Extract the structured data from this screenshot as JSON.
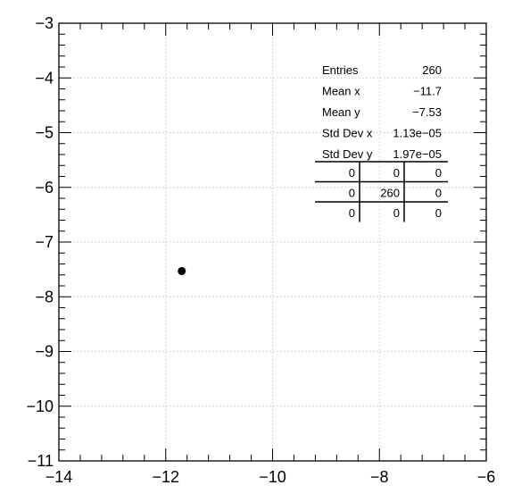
{
  "chart_data": {
    "type": "scatter",
    "title": "",
    "xlabel": "",
    "ylabel": "",
    "xlim": [
      -14,
      -6
    ],
    "ylim": [
      -11,
      -3
    ],
    "x_ticks": [
      {
        "value": -14,
        "label": "−14"
      },
      {
        "value": -12,
        "label": "−12"
      },
      {
        "value": -10,
        "label": "−10"
      },
      {
        "value": -8,
        "label": "−8"
      },
      {
        "value": -6,
        "label": "−6"
      }
    ],
    "y_ticks": [
      {
        "value": -3,
        "label": "−3"
      },
      {
        "value": -4,
        "label": "−4"
      },
      {
        "value": -5,
        "label": "−5"
      },
      {
        "value": -6,
        "label": "−6"
      },
      {
        "value": -7,
        "label": "−7"
      },
      {
        "value": -8,
        "label": "−8"
      },
      {
        "value": -9,
        "label": "−9"
      },
      {
        "value": -10,
        "label": "−10"
      },
      {
        "value": -11,
        "label": "−11"
      }
    ],
    "grid": true,
    "series": [
      {
        "points": [
          {
            "x": -11.7,
            "y": -7.53
          }
        ],
        "color": "#000000"
      }
    ],
    "stats_box": {
      "position": "top-right",
      "rows": [
        {
          "label": "Entries",
          "value": "260"
        },
        {
          "label": "Mean x",
          "value": "−11.7"
        },
        {
          "label": "Mean y",
          "value": "−7.53"
        },
        {
          "label": "Std Dev x",
          "value": "1.13e−05"
        },
        {
          "label": "Std Dev y",
          "value": "1.97e−05"
        }
      ],
      "grid_counts": [
        [
          "0",
          "0",
          "0"
        ],
        [
          "0",
          "260",
          "0"
        ],
        [
          "0",
          "0",
          "0"
        ]
      ]
    }
  }
}
